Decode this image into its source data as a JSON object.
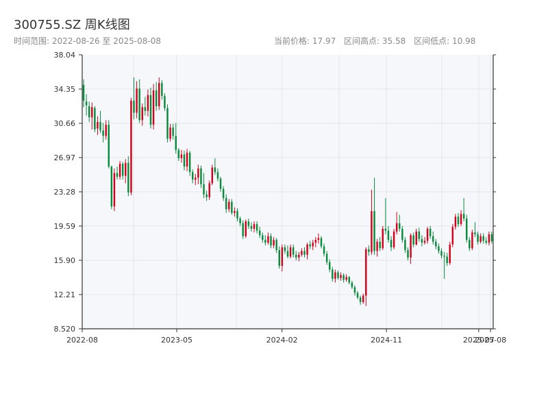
{
  "header": {
    "title": "300755.SZ 周K线图",
    "range_label": "时间范围: 2022-08-26 至 2025-08-08",
    "current_price_label": "当前价格: 17.97",
    "high_label": "区间高点: 35.58",
    "low_label": "区间低点: 10.98"
  },
  "colors": {
    "up": "#d0021b",
    "down": "#0a8a3c",
    "plot_bg": "#f5f7fa",
    "grid": "#e3e6ea",
    "axis": "#333333"
  },
  "chart_data": {
    "type": "candlestick",
    "title": "300755.SZ 周K线图",
    "period": "weekly",
    "start_date": "2022-08-26",
    "end_date": "2025-08-08",
    "current_price": 17.97,
    "range_high": 35.58,
    "range_low": 10.98,
    "ylim": [
      8.52,
      38.04
    ],
    "y_ticks": [
      "38.04",
      "34.35",
      "30.66",
      "26.97",
      "23.28",
      "19.59",
      "15.90",
      "12.21",
      "8.520"
    ],
    "x_ticks": [
      "2022-08",
      "2023-05",
      "2024-02",
      "2024-11",
      "2025-07",
      "2025-08"
    ],
    "grid": true,
    "legend": "none",
    "candles": [
      [
        34.8,
        35.4,
        32.4,
        33.1
      ],
      [
        33.0,
        33.8,
        31.5,
        32.6
      ],
      [
        32.5,
        33.0,
        30.8,
        31.3
      ],
      [
        31.3,
        32.9,
        30.0,
        32.4
      ],
      [
        32.3,
        32.5,
        29.7,
        30.0
      ],
      [
        30.1,
        31.4,
        29.4,
        30.8
      ],
      [
        30.8,
        32.0,
        29.6,
        29.9
      ],
      [
        29.9,
        30.7,
        28.6,
        29.3
      ],
      [
        29.3,
        31.0,
        28.9,
        30.5
      ],
      [
        30.5,
        31.0,
        25.8,
        26.0
      ],
      [
        26.0,
        26.1,
        21.4,
        21.7
      ],
      [
        21.7,
        25.8,
        21.2,
        25.3
      ],
      [
        25.3,
        26.0,
        24.6,
        24.9
      ],
      [
        24.9,
        26.6,
        24.6,
        26.3
      ],
      [
        26.3,
        26.5,
        24.6,
        25.0
      ],
      [
        25.0,
        26.8,
        24.2,
        26.4
      ],
      [
        26.4,
        27.1,
        22.8,
        23.2
      ],
      [
        23.2,
        33.4,
        22.9,
        33.1
      ],
      [
        33.1,
        35.6,
        31.1,
        31.8
      ],
      [
        31.8,
        35.2,
        31.2,
        34.4
      ],
      [
        34.4,
        35.4,
        30.7,
        31.0
      ],
      [
        31.0,
        32.8,
        30.4,
        32.4
      ],
      [
        32.4,
        33.5,
        31.5,
        32.0
      ],
      [
        32.0,
        34.3,
        31.4,
        33.7
      ],
      [
        33.7,
        34.5,
        30.1,
        30.5
      ],
      [
        30.5,
        34.9,
        30.0,
        34.2
      ],
      [
        34.2,
        35.1,
        32.0,
        32.5
      ],
      [
        32.5,
        35.6,
        32.1,
        35.0
      ],
      [
        35.0,
        35.3,
        33.2,
        33.6
      ],
      [
        33.6,
        33.9,
        32.0,
        32.3
      ],
      [
        32.3,
        32.7,
        28.6,
        29.0
      ],
      [
        29.0,
        30.6,
        28.7,
        30.2
      ],
      [
        30.2,
        30.6,
        28.9,
        29.3
      ],
      [
        29.3,
        30.7,
        27.4,
        27.8
      ],
      [
        27.8,
        28.0,
        26.6,
        26.9
      ],
      [
        26.9,
        27.8,
        26.4,
        27.3
      ],
      [
        27.3,
        27.7,
        25.6,
        26.0
      ],
      [
        26.0,
        27.9,
        25.5,
        27.5
      ],
      [
        27.5,
        27.7,
        25.0,
        25.4
      ],
      [
        25.4,
        25.7,
        24.2,
        24.6
      ],
      [
        24.6,
        25.2,
        24.0,
        24.8
      ],
      [
        24.8,
        26.2,
        24.1,
        25.8
      ],
      [
        25.8,
        26.1,
        23.7,
        24.1
      ],
      [
        24.1,
        25.3,
        22.6,
        23.0
      ],
      [
        23.0,
        23.4,
        22.3,
        22.7
      ],
      [
        22.7,
        24.5,
        22.4,
        24.2
      ],
      [
        24.2,
        26.2,
        24.0,
        25.9
      ],
      [
        25.9,
        26.9,
        25.1,
        25.4
      ],
      [
        25.4,
        25.8,
        24.4,
        24.7
      ],
      [
        24.7,
        24.9,
        23.3,
        23.6
      ],
      [
        23.6,
        23.9,
        22.3,
        22.6
      ],
      [
        22.6,
        23.0,
        21.0,
        21.4
      ],
      [
        21.4,
        22.5,
        21.1,
        22.2
      ],
      [
        22.2,
        22.5,
        20.8,
        21.0
      ],
      [
        21.0,
        21.6,
        20.6,
        21.2
      ],
      [
        21.2,
        21.5,
        20.1,
        20.4
      ],
      [
        20.4,
        20.6,
        19.6,
        19.9
      ],
      [
        19.9,
        20.2,
        18.2,
        18.5
      ],
      [
        18.5,
        20.3,
        18.3,
        20.1
      ],
      [
        20.1,
        20.4,
        19.3,
        19.6
      ],
      [
        19.6,
        20.0,
        19.0,
        19.3
      ],
      [
        19.3,
        20.1,
        18.9,
        19.8
      ],
      [
        19.8,
        20.1,
        18.8,
        19.1
      ],
      [
        19.1,
        19.5,
        18.3,
        18.6
      ],
      [
        18.6,
        18.9,
        17.8,
        18.1
      ],
      [
        18.1,
        18.6,
        17.5,
        17.8
      ],
      [
        17.8,
        18.9,
        17.6,
        18.5
      ],
      [
        18.5,
        18.8,
        17.2,
        17.5
      ],
      [
        17.5,
        18.4,
        17.2,
        18.1
      ],
      [
        18.1,
        18.3,
        16.7,
        17.0
      ],
      [
        17.0,
        17.4,
        15.0,
        15.3
      ],
      [
        15.3,
        17.6,
        14.7,
        17.3
      ],
      [
        17.3,
        17.6,
        16.6,
        16.9
      ],
      [
        16.9,
        17.5,
        16.1,
        16.3
      ],
      [
        16.3,
        17.6,
        16.1,
        17.3
      ],
      [
        17.3,
        17.6,
        16.2,
        16.5
      ],
      [
        16.5,
        16.9,
        15.9,
        16.2
      ],
      [
        16.2,
        16.8,
        15.8,
        16.5
      ],
      [
        16.5,
        17.2,
        16.3,
        16.9
      ],
      [
        16.9,
        17.3,
        16.2,
        16.5
      ],
      [
        16.5,
        17.8,
        16.0,
        17.6
      ],
      [
        17.6,
        18.0,
        17.1,
        17.4
      ],
      [
        17.4,
        18.1,
        17.0,
        17.8
      ],
      [
        17.8,
        18.4,
        17.3,
        18.1
      ],
      [
        18.1,
        18.8,
        17.7,
        18.3
      ],
      [
        18.3,
        18.5,
        17.2,
        17.4
      ],
      [
        17.4,
        17.7,
        16.3,
        16.6
      ],
      [
        16.6,
        16.9,
        15.4,
        15.7
      ],
      [
        15.7,
        16.0,
        14.6,
        14.9
      ],
      [
        14.9,
        15.2,
        13.6,
        13.9
      ],
      [
        13.9,
        14.9,
        13.5,
        14.6
      ],
      [
        14.6,
        14.8,
        13.8,
        14.0
      ],
      [
        14.0,
        14.6,
        13.7,
        14.3
      ],
      [
        14.3,
        14.5,
        13.5,
        13.8
      ],
      [
        13.8,
        14.4,
        13.6,
        14.1
      ],
      [
        14.1,
        14.2,
        13.3,
        13.5
      ],
      [
        13.5,
        13.7,
        12.8,
        13.0
      ],
      [
        13.0,
        13.2,
        12.1,
        12.4
      ],
      [
        12.4,
        12.6,
        11.7,
        11.9
      ],
      [
        11.9,
        12.1,
        11.1,
        11.4
      ],
      [
        11.4,
        12.3,
        11.2,
        12.1
      ],
      [
        12.1,
        17.3,
        10.98,
        17.1
      ],
      [
        17.1,
        17.5,
        16.4,
        16.8
      ],
      [
        16.8,
        23.5,
        16.5,
        21.2
      ],
      [
        21.2,
        24.8,
        16.5,
        16.9
      ],
      [
        16.9,
        18.2,
        16.3,
        17.9
      ],
      [
        17.9,
        18.4,
        16.9,
        17.2
      ],
      [
        17.2,
        19.6,
        17.0,
        19.3
      ],
      [
        19.3,
        22.6,
        18.7,
        19.1
      ],
      [
        19.1,
        19.6,
        17.8,
        18.1
      ],
      [
        18.1,
        18.5,
        16.9,
        17.3
      ],
      [
        17.3,
        19.3,
        17.1,
        19.0
      ],
      [
        19.0,
        21.1,
        18.7,
        19.9
      ],
      [
        19.9,
        20.8,
        19.0,
        19.3
      ],
      [
        19.3,
        19.6,
        17.8,
        18.1
      ],
      [
        18.1,
        18.4,
        16.7,
        17.0
      ],
      [
        17.0,
        17.3,
        15.9,
        16.2
      ],
      [
        16.2,
        18.8,
        15.5,
        18.6
      ],
      [
        18.6,
        18.9,
        17.3,
        17.6
      ],
      [
        17.6,
        19.3,
        17.5,
        19.0
      ],
      [
        19.0,
        19.4,
        17.9,
        18.2
      ],
      [
        18.2,
        18.6,
        17.4,
        17.8
      ],
      [
        17.8,
        18.4,
        17.6,
        18.0
      ],
      [
        18.0,
        19.5,
        17.7,
        19.3
      ],
      [
        19.3,
        19.6,
        18.2,
        18.5
      ],
      [
        18.5,
        19.0,
        17.6,
        17.9
      ],
      [
        17.9,
        18.2,
        17.1,
        17.4
      ],
      [
        17.4,
        17.7,
        16.6,
        16.9
      ],
      [
        16.9,
        17.2,
        16.1,
        16.4
      ],
      [
        16.4,
        16.8,
        13.9,
        16.3
      ],
      [
        16.3,
        16.7,
        15.3,
        15.6
      ],
      [
        15.6,
        17.9,
        15.4,
        17.6
      ],
      [
        17.6,
        19.8,
        17.3,
        19.5
      ],
      [
        19.5,
        20.9,
        19.2,
        20.6
      ],
      [
        20.6,
        21.0,
        19.5,
        19.8
      ],
      [
        19.8,
        21.3,
        19.6,
        20.9
      ],
      [
        20.9,
        22.6,
        20.1,
        20.4
      ],
      [
        20.4,
        20.8,
        17.8,
        18.1
      ],
      [
        18.1,
        18.4,
        16.9,
        17.2
      ],
      [
        17.2,
        19.2,
        17.0,
        18.9
      ],
      [
        18.9,
        20.0,
        18.4,
        18.7
      ],
      [
        18.7,
        19.0,
        17.6,
        17.9
      ],
      [
        17.9,
        18.8,
        17.7,
        18.5
      ],
      [
        18.5,
        18.8,
        17.7,
        18.0
      ],
      [
        18.0,
        18.4,
        17.6,
        17.8
      ],
      [
        17.8,
        19.0,
        17.5,
        18.7
      ],
      [
        18.7,
        19.0,
        17.7,
        17.97
      ]
    ]
  }
}
